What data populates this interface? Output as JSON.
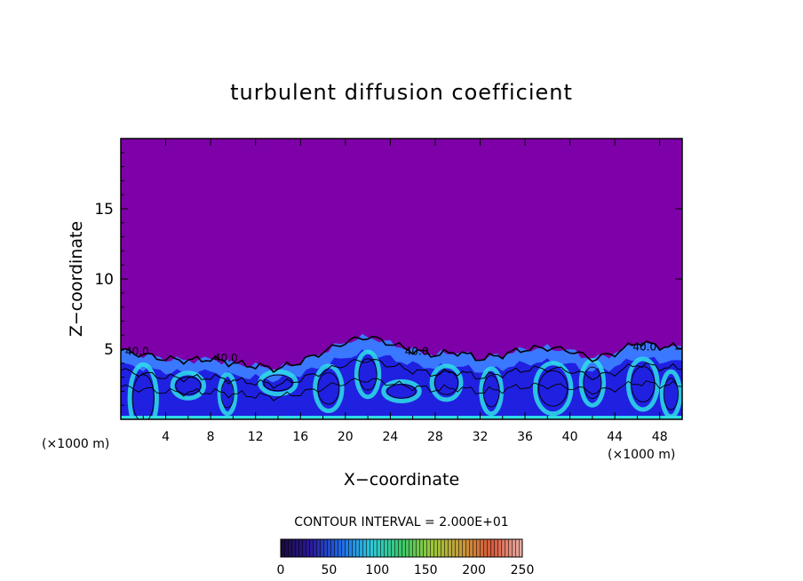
{
  "chart_data": {
    "type": "heatmap",
    "title": "turbulent diffusion coefficient",
    "xlabel": "X−coordinate",
    "ylabel": "Z−coordinate",
    "x_unit": "(×1000 m)",
    "y_unit": "(×1000 m)",
    "xlim": [
      0,
      50
    ],
    "ylim": [
      0,
      20
    ],
    "xticks": [
      "4",
      "8",
      "12",
      "16",
      "20",
      "24",
      "28",
      "32",
      "36",
      "40",
      "44",
      "48"
    ],
    "yticks": [
      "5",
      "10",
      "15"
    ],
    "field_top_profile": {
      "x": [
        0,
        2,
        4,
        6,
        8,
        10,
        12,
        14,
        16,
        18,
        20,
        22,
        24,
        26,
        28,
        30,
        32,
        34,
        36,
        38,
        40,
        42,
        44,
        46,
        48,
        50
      ],
      "z": [
        4.9,
        4.6,
        4.3,
        4.2,
        4.3,
        4.0,
        3.8,
        3.6,
        4.1,
        4.8,
        5.5,
        5.9,
        5.4,
        4.9,
        4.6,
        4.8,
        4.3,
        4.6,
        5.0,
        5.1,
        4.9,
        4.3,
        4.7,
        5.5,
        5.2,
        5.1
      ]
    },
    "contour_labels": [
      "40.0",
      "40.0",
      "40.0",
      "40.0"
    ],
    "background_value": 0,
    "colorbar": {
      "ticks": [
        "0",
        "50",
        "100",
        "150",
        "200",
        "250"
      ],
      "range": [
        0,
        250
      ],
      "contour_interval_text": "CONTOUR INTERVAL = 2.000E+01",
      "colors": [
        "#1a0a3a",
        "#2a1a9a",
        "#1e6ae6",
        "#2ec8d8",
        "#39c86a",
        "#9ac83a",
        "#c89a3a",
        "#d8583a",
        "#e8b0a8"
      ]
    },
    "field_colors": {
      "background": "#7e00a8",
      "low": "#2020e0",
      "mid": "#3a78ff",
      "high": "#2ee0e6"
    },
    "grid": false
  }
}
